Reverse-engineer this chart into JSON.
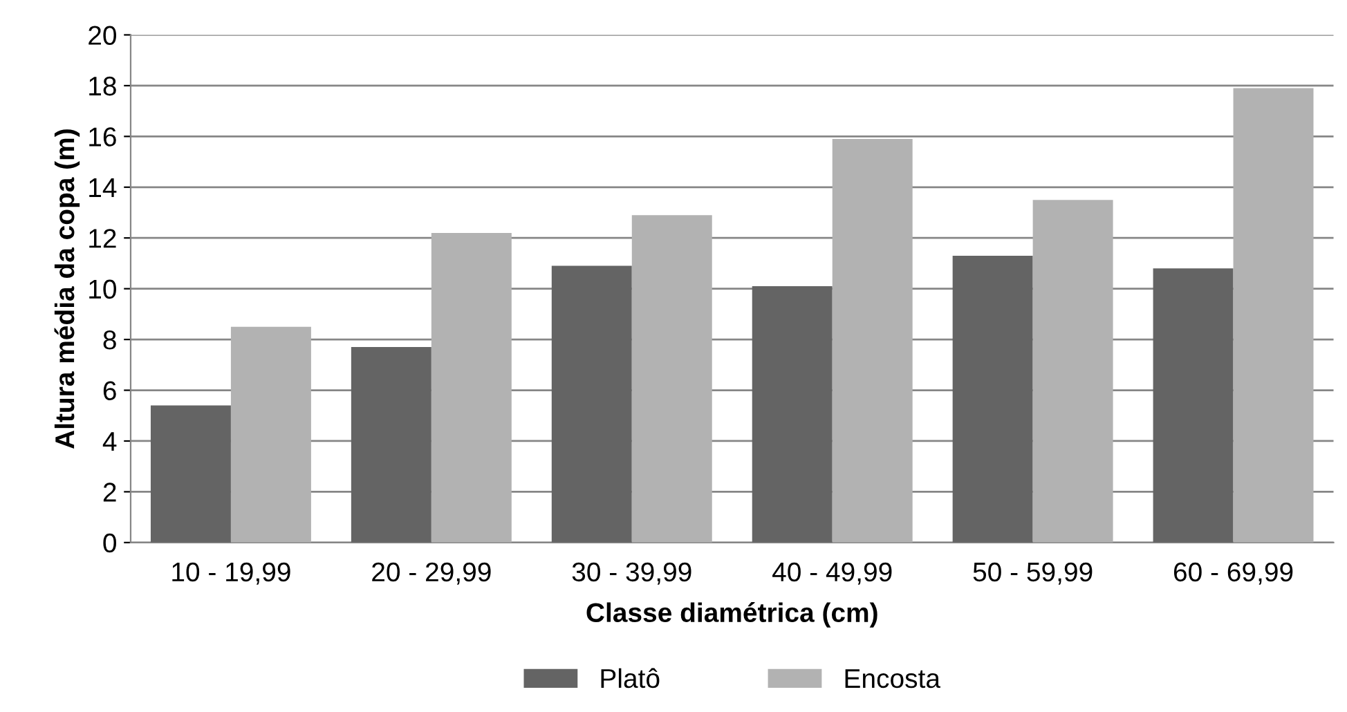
{
  "chart_data": {
    "type": "bar",
    "xlabel": "Classe diamétrica (cm)",
    "ylabel": "Altura média da copa (m)",
    "categories": [
      "10 - 19,99",
      "20 - 29,99",
      "30 - 39,99",
      "40 - 49,99",
      "50 - 59,99",
      "60 - 69,99"
    ],
    "series": [
      {
        "name": "Platô",
        "color": "#646464",
        "values": [
          5.4,
          7.7,
          10.9,
          10.1,
          11.3,
          10.8
        ]
      },
      {
        "name": "Encosta",
        "color": "#b2b2b2",
        "values": [
          8.5,
          12.2,
          12.9,
          15.9,
          13.5,
          17.9
        ]
      }
    ],
    "ylim": [
      0,
      20
    ],
    "yticks": [
      0,
      2,
      4,
      6,
      8,
      10,
      12,
      14,
      16,
      18,
      20
    ],
    "grid": "y",
    "legend": "bottom"
  }
}
